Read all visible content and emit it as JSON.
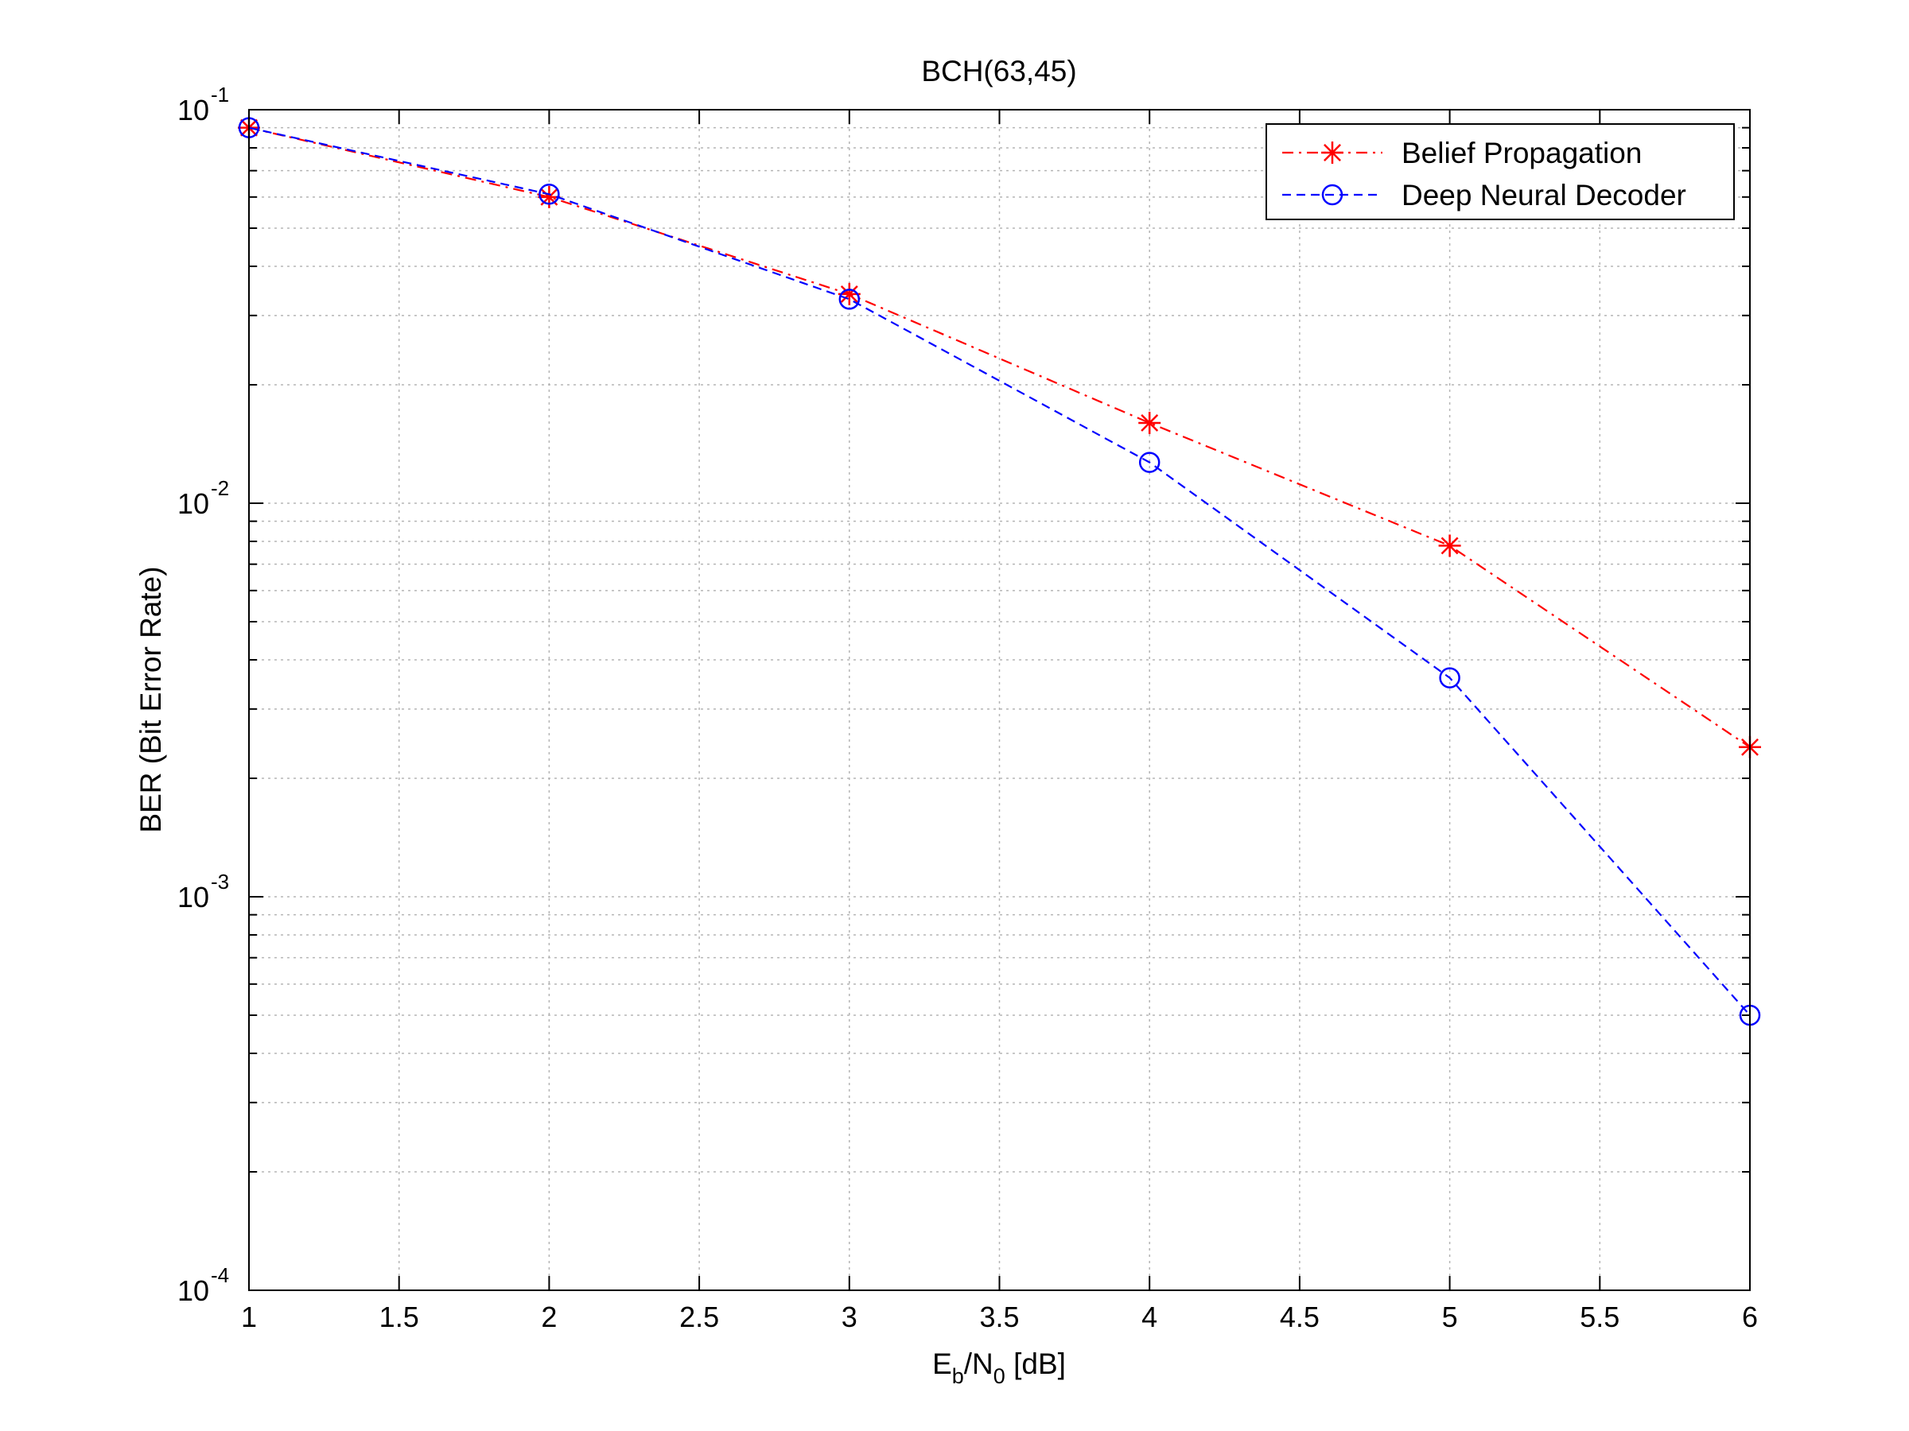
{
  "chart_data": {
    "type": "line",
    "title": "BCH(63,45)",
    "xlabel": {
      "main": "E",
      "sub1": "b",
      "mid": "/N",
      "sub2": "0",
      "rest": " [dB]"
    },
    "ylabel": "BER (Bit Error Rate)",
    "xlim": [
      1,
      6
    ],
    "ylim": [
      0.0001,
      0.1
    ],
    "yscale": "log",
    "grid": true,
    "legend_position": "top-right",
    "x_ticks": [
      "1",
      "1.5",
      "2",
      "2.5",
      "3",
      "3.5",
      "4",
      "4.5",
      "5",
      "5.5",
      "6"
    ],
    "y_ticks": [
      {
        "base": "10",
        "exp": "-1"
      },
      {
        "base": "10",
        "exp": "-2"
      },
      {
        "base": "10",
        "exp": "-3"
      },
      {
        "base": "10",
        "exp": "-4"
      }
    ],
    "x": [
      1,
      2,
      3,
      4,
      5,
      6
    ],
    "series": [
      {
        "name": "Belief Propagation",
        "values": [
          0.09,
          0.06,
          0.034,
          0.016,
          0.0078,
          0.0024
        ],
        "color": "#ff0000",
        "line_style": "dash-dot",
        "marker": "asterisk"
      },
      {
        "name": "Deep Neural Decoder",
        "values": [
          0.09,
          0.061,
          0.033,
          0.0127,
          0.0036,
          0.0005
        ],
        "color": "#0000ff",
        "line_style": "dashed",
        "marker": "circle"
      }
    ]
  }
}
